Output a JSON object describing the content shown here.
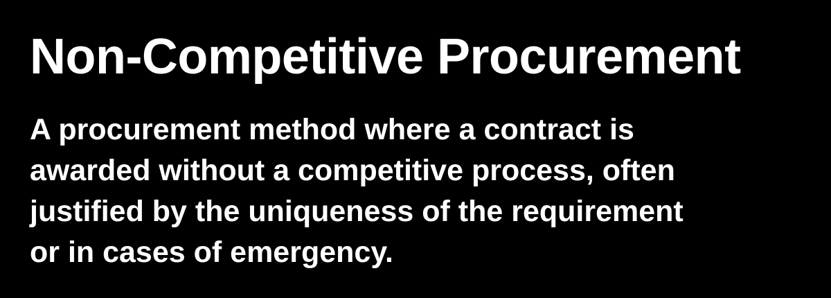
{
  "card": {
    "term": "Non-Competitive Procurement",
    "definition_lines": [
      "A procurement method where a contract is",
      "awarded without a competitive process, often",
      "justified by the uniqueness of the requirement",
      "or in cases of emergency."
    ],
    "colors": {
      "background": "#000000",
      "text": "#ffffff"
    }
  }
}
